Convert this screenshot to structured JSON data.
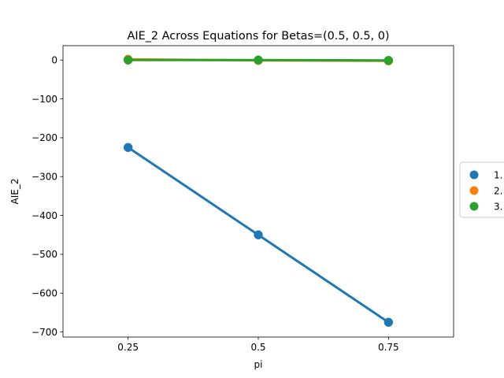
{
  "chart_data": {
    "type": "line",
    "title": "AIE_2 Across Equations for Betas=(0.5, 0.5, 0)",
    "xlabel": "pi",
    "ylabel": "AIE_2",
    "categories": [
      "0.25",
      "0.5",
      "0.75"
    ],
    "y_ticks": [
      0,
      -100,
      -200,
      -300,
      -400,
      -500,
      -600,
      -700
    ],
    "y_tick_labels": [
      "0",
      "−100",
      "−200",
      "−300",
      "−400",
      "−500",
      "−600",
      "−700"
    ],
    "ylim": [
      -713,
      37
    ],
    "grid": false,
    "legend_position": "right, outside plot area",
    "series": [
      {
        "name": "1.",
        "color": "#1f77b4",
        "values": [
          -225,
          -450,
          -675
        ]
      },
      {
        "name": "2.",
        "color": "#ff7f0e",
        "values": [
          2,
          -1,
          -2
        ]
      },
      {
        "name": "3.",
        "color": "#2ca02c",
        "values": [
          0,
          0,
          -1
        ]
      }
    ]
  }
}
